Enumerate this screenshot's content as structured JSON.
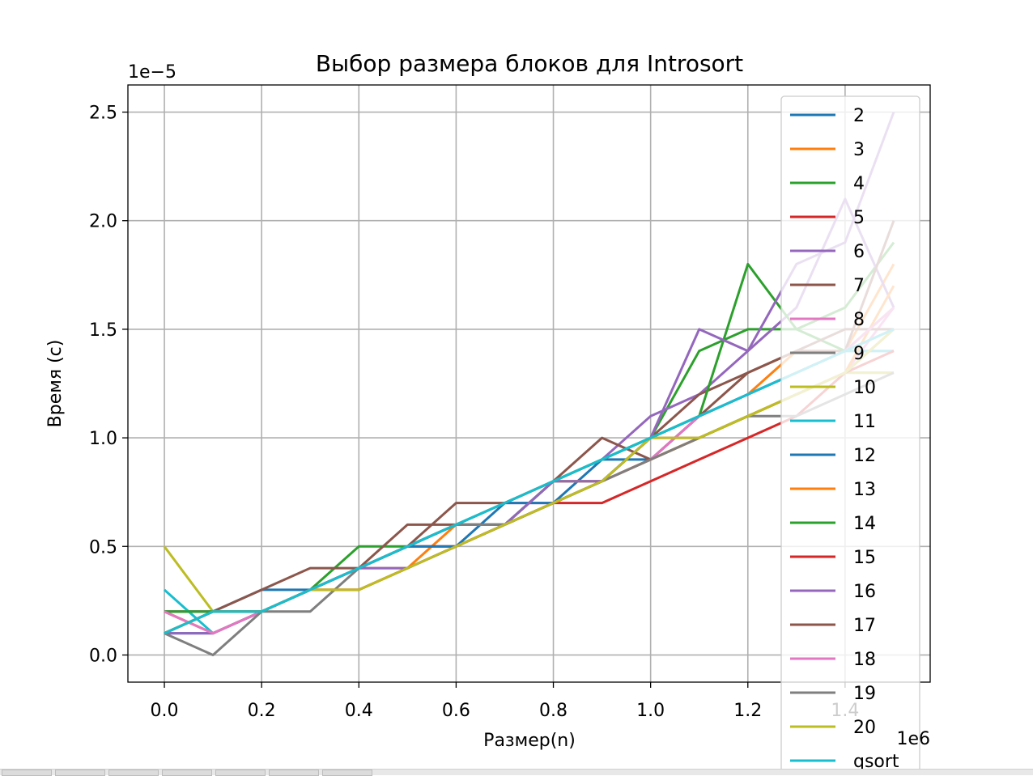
{
  "chart_data": {
    "type": "line",
    "title": "Выбор размера блоков для Introsort",
    "xlabel": "Размер(n)",
    "ylabel": "Время (с)",
    "x_offset_text": "1e6",
    "y_offset_text": "1e−5",
    "xlim": [
      -0.075,
      1.575
    ],
    "ylim": [
      -0.125,
      2.625
    ],
    "x_ticks": [
      0.0,
      0.2,
      0.4,
      0.6,
      0.8,
      1.0,
      1.2,
      1.4
    ],
    "x_tick_labels": [
      "0.0",
      "0.2",
      "0.4",
      "0.6",
      "0.8",
      "1.0",
      "1.2",
      "1.4"
    ],
    "y_ticks": [
      0.0,
      0.5,
      1.0,
      1.5,
      2.0,
      2.5
    ],
    "y_tick_labels": [
      "0.0",
      "0.5",
      "1.0",
      "1.5",
      "2.0",
      "2.5"
    ],
    "grid": true,
    "legend_position": "top-right",
    "x": [
      0.0,
      0.1,
      0.2,
      0.3,
      0.4,
      0.5,
      0.6,
      0.7,
      0.8,
      0.9,
      1.0,
      1.1,
      1.2,
      1.3,
      1.4,
      1.5
    ],
    "series": [
      {
        "name": "2",
        "color": "#1f77b4",
        "values": [
          0.1,
          0.2,
          0.3,
          0.3,
          0.4,
          0.5,
          0.6,
          0.6,
          0.7,
          0.9,
          0.9,
          1.1,
          1.2,
          1.3,
          1.4,
          1.4
        ]
      },
      {
        "name": "3",
        "color": "#ff7f0e",
        "values": [
          0.1,
          0.2,
          0.2,
          0.3,
          0.4,
          0.4,
          0.6,
          0.7,
          0.8,
          0.8,
          1.0,
          1.1,
          1.2,
          1.4,
          1.4,
          1.8
        ]
      },
      {
        "name": "4",
        "color": "#2ca02c",
        "values": [
          0.2,
          0.2,
          0.2,
          0.3,
          0.5,
          0.5,
          0.6,
          0.6,
          0.8,
          0.9,
          1.0,
          1.4,
          1.5,
          1.5,
          1.6,
          1.9
        ]
      },
      {
        "name": "5",
        "color": "#d62728",
        "values": [
          0.1,
          0.2,
          0.2,
          0.3,
          0.4,
          0.5,
          0.5,
          0.6,
          0.7,
          0.8,
          0.9,
          1.0,
          1.1,
          1.2,
          1.3,
          1.5
        ]
      },
      {
        "name": "6",
        "color": "#9467bd",
        "values": [
          0.2,
          0.2,
          0.2,
          0.3,
          0.4,
          0.5,
          0.6,
          0.6,
          0.8,
          0.9,
          1.1,
          1.2,
          1.4,
          1.6,
          2.1,
          1.6
        ]
      },
      {
        "name": "7",
        "color": "#8c564b",
        "values": [
          0.1,
          0.2,
          0.3,
          0.4,
          0.4,
          0.6,
          0.6,
          0.7,
          0.8,
          0.9,
          1.0,
          1.2,
          1.3,
          1.4,
          1.4,
          2.0
        ]
      },
      {
        "name": "8",
        "color": "#e377c2",
        "values": [
          0.2,
          0.2,
          0.2,
          0.3,
          0.4,
          0.5,
          0.6,
          0.7,
          0.7,
          0.8,
          1.0,
          1.0,
          1.1,
          1.2,
          1.3,
          1.6
        ]
      },
      {
        "name": "9",
        "color": "#7f7f7f",
        "values": [
          0.2,
          0.1,
          0.2,
          0.3,
          0.4,
          0.5,
          0.6,
          0.6,
          0.8,
          0.8,
          0.9,
          1.0,
          1.1,
          1.2,
          1.3,
          1.3
        ]
      },
      {
        "name": "10",
        "color": "#bcbd22",
        "values": [
          0.5,
          0.2,
          0.2,
          0.3,
          0.4,
          0.5,
          0.6,
          0.7,
          0.8,
          0.8,
          0.9,
          1.0,
          1.1,
          1.2,
          1.3,
          1.3
        ]
      },
      {
        "name": "11",
        "color": "#17becf",
        "values": [
          0.3,
          0.1,
          0.2,
          0.3,
          0.4,
          0.5,
          0.6,
          0.7,
          0.8,
          0.9,
          1.0,
          1.1,
          1.2,
          1.3,
          1.4,
          1.4
        ]
      },
      {
        "name": "12",
        "color": "#1f77b4",
        "values": [
          0.1,
          0.1,
          0.2,
          0.3,
          0.4,
          0.5,
          0.5,
          0.7,
          0.7,
          0.8,
          1.0,
          1.1,
          1.2,
          1.3,
          1.4,
          1.5
        ]
      },
      {
        "name": "13",
        "color": "#ff7f0e",
        "values": [
          0.2,
          0.1,
          0.2,
          0.3,
          0.3,
          0.4,
          0.5,
          0.6,
          0.7,
          0.8,
          0.9,
          1.0,
          1.1,
          1.2,
          1.3,
          1.7
        ]
      },
      {
        "name": "14",
        "color": "#2ca02c",
        "values": [
          0.2,
          0.2,
          0.2,
          0.3,
          0.4,
          0.5,
          0.6,
          0.6,
          0.8,
          0.9,
          1.0,
          1.1,
          1.8,
          1.5,
          1.4,
          1.6
        ]
      },
      {
        "name": "15",
        "color": "#d62728",
        "values": [
          0.1,
          0.2,
          0.2,
          0.3,
          0.3,
          0.4,
          0.5,
          0.6,
          0.7,
          0.7,
          0.8,
          0.9,
          1.0,
          1.1,
          1.3,
          1.4
        ]
      },
      {
        "name": "16",
        "color": "#9467bd",
        "values": [
          0.1,
          0.1,
          0.2,
          0.3,
          0.4,
          0.4,
          0.5,
          0.6,
          0.8,
          0.8,
          1.0,
          1.5,
          1.4,
          1.8,
          1.9,
          2.5
        ]
      },
      {
        "name": "17",
        "color": "#8c564b",
        "values": [
          0.1,
          0.2,
          0.2,
          0.3,
          0.4,
          0.5,
          0.7,
          0.7,
          0.8,
          1.0,
          0.9,
          1.1,
          1.3,
          1.4,
          1.5,
          1.5
        ]
      },
      {
        "name": "18",
        "color": "#e377c2",
        "values": [
          0.2,
          0.1,
          0.2,
          0.3,
          0.4,
          0.5,
          0.6,
          0.6,
          0.7,
          0.8,
          0.9,
          1.1,
          1.2,
          1.3,
          1.4,
          1.6
        ]
      },
      {
        "name": "19",
        "color": "#7f7f7f",
        "values": [
          0.1,
          0.0,
          0.2,
          0.2,
          0.4,
          0.5,
          0.6,
          0.6,
          0.7,
          0.8,
          0.9,
          1.0,
          1.1,
          1.1,
          1.2,
          1.3
        ]
      },
      {
        "name": "20",
        "color": "#bcbd22",
        "values": [
          0.1,
          0.2,
          0.2,
          0.3,
          0.3,
          0.4,
          0.5,
          0.6,
          0.7,
          0.8,
          1.0,
          1.0,
          1.1,
          1.2,
          1.3,
          1.5
        ]
      },
      {
        "name": "qsort",
        "color": "#17becf",
        "values": [
          0.1,
          0.2,
          0.2,
          0.3,
          0.4,
          0.5,
          0.6,
          0.7,
          0.8,
          0.9,
          1.0,
          1.1,
          1.2,
          1.3,
          1.4,
          1.5
        ]
      }
    ]
  }
}
